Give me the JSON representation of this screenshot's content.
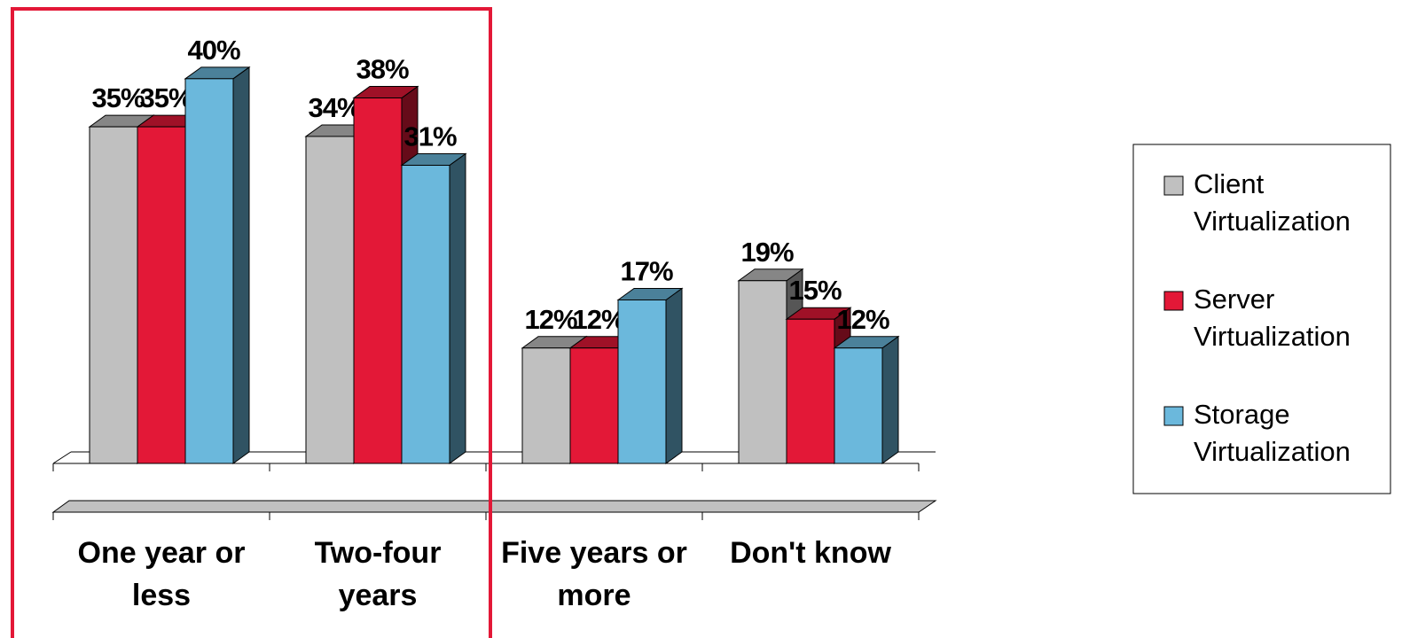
{
  "chart_data": {
    "type": "bar3d",
    "categories": [
      "One year or less",
      "Two-four years",
      "Five years or more",
      "Don't know"
    ],
    "series": [
      {
        "name": "Client Virtualization",
        "color": "#c0c0c0",
        "values": [
          35,
          34,
          12,
          19
        ],
        "value_labels": [
          "35%",
          "34%",
          "12%",
          "19%"
        ]
      },
      {
        "name": "Server Virtualization",
        "color": "#e31837",
        "values": [
          35,
          38,
          12,
          15
        ],
        "value_labels": [
          "35%",
          "38%",
          "12%",
          "15%"
        ]
      },
      {
        "name": "Storage Virtualization",
        "color": "#6bb8dc",
        "values": [
          40,
          31,
          17,
          12
        ],
        "value_labels": [
          "40%",
          "31%",
          "17%",
          "12%"
        ]
      }
    ],
    "ylim": [
      0,
      48
    ],
    "legend": "right"
  }
}
